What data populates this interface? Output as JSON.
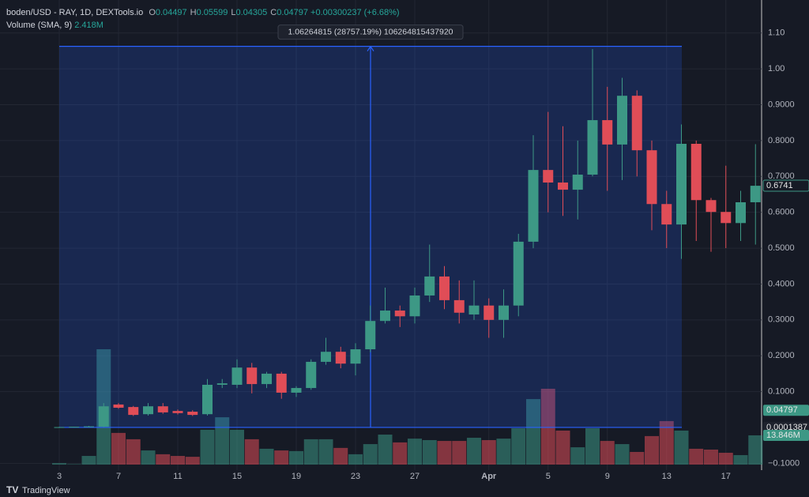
{
  "header": {
    "symbol": "boden/USD",
    "source": "- RAY, 1D, DEXTools.io",
    "ohlc": [
      {
        "key": "O",
        "value": "0.04497"
      },
      {
        "key": "H",
        "value": "0.05599"
      },
      {
        "key": "L",
        "value": "0.04305"
      },
      {
        "key": "C",
        "value": "0.04797"
      }
    ],
    "change": "+0.00300237 (+6.68%)",
    "indicator": "Volume (SMA, 9)",
    "indicator_value": "2.418M"
  },
  "branding": "TradingView",
  "chart_data": {
    "type": "candlestick",
    "categories": [
      "3",
      null,
      null,
      null,
      "7",
      null,
      null,
      null,
      "11",
      null,
      null,
      null,
      "15",
      null,
      null,
      null,
      "19",
      null,
      null,
      null,
      "23",
      null,
      null,
      null,
      "27",
      null,
      null,
      null,
      null,
      "Apr",
      null,
      null,
      null,
      "5",
      null,
      null,
      null,
      "9",
      null,
      null,
      null,
      "13",
      null,
      null,
      null,
      "17",
      null,
      null
    ],
    "open": [
      0.001,
      0.001,
      0.001,
      0.002,
      0.064,
      0.057,
      0.037,
      0.059,
      0.046,
      0.044,
      0.037,
      0.119,
      0.119,
      0.167,
      0.121,
      0.15,
      0.097,
      0.11,
      0.183,
      0.211,
      0.178,
      0.218,
      0.297,
      0.326,
      0.31,
      0.368,
      0.421,
      0.355,
      0.315,
      0.34,
      0.3,
      0.34,
      0.518,
      0.718,
      0.683,
      0.663,
      0.705,
      0.857,
      0.789,
      0.925,
      0.773,
      0.623,
      0.566,
      0.791,
      0.634,
      0.601,
      0.57,
      0.628
    ],
    "high": [
      0.002,
      0.002,
      0.004,
      0.068,
      0.068,
      0.06,
      0.068,
      0.068,
      0.05,
      0.048,
      0.135,
      0.135,
      0.19,
      0.18,
      0.155,
      0.155,
      0.115,
      0.19,
      0.25,
      0.225,
      0.235,
      0.34,
      0.39,
      0.34,
      0.39,
      0.51,
      0.45,
      0.41,
      0.41,
      0.36,
      0.385,
      0.54,
      0.815,
      0.88,
      0.84,
      0.8,
      1.055,
      0.95,
      0.975,
      0.94,
      0.8,
      0.66,
      0.845,
      0.8,
      0.64,
      0.73,
      0.66,
      0.79
    ],
    "low": [
      0.0,
      0.0,
      0.0,
      0.001,
      0.052,
      0.032,
      0.033,
      0.038,
      0.036,
      0.032,
      0.033,
      0.11,
      0.11,
      0.095,
      0.11,
      0.08,
      0.085,
      0.105,
      0.175,
      0.165,
      0.145,
      0.21,
      0.29,
      0.28,
      0.29,
      0.35,
      0.33,
      0.29,
      0.3,
      0.25,
      0.25,
      0.31,
      0.5,
      0.6,
      0.59,
      0.58,
      0.7,
      0.66,
      0.69,
      0.7,
      0.55,
      0.5,
      0.47,
      0.52,
      0.49,
      0.5,
      0.52,
      0.51
    ],
    "close": [
      0.001,
      0.002,
      0.003,
      0.059,
      0.055,
      0.035,
      0.059,
      0.042,
      0.04,
      0.035,
      0.119,
      0.123,
      0.167,
      0.121,
      0.15,
      0.097,
      0.11,
      0.183,
      0.211,
      0.178,
      0.218,
      0.297,
      0.326,
      0.31,
      0.368,
      0.421,
      0.355,
      0.32,
      0.34,
      0.3,
      0.34,
      0.518,
      0.718,
      0.683,
      0.663,
      0.705,
      0.857,
      0.789,
      0.925,
      0.773,
      0.623,
      0.566,
      0.791,
      0.634,
      0.601,
      0.57,
      0.628,
      0.674
    ],
    "volume": [
      0.7,
      0.2,
      4.1,
      54.6,
      15,
      12,
      6.7,
      4.9,
      4.1,
      3.7,
      16.5,
      22.4,
      16.5,
      12,
      7.5,
      6.7,
      6.4,
      12,
      12,
      7.9,
      4.9,
      9.7,
      14.2,
      10.5,
      12.3,
      11.6,
      11.2,
      11.2,
      12.7,
      11.6,
      12.3,
      17.2,
      31,
      35.9,
      16.1,
      8.2,
      17.2,
      11.2,
      9.7,
      6,
      13.5,
      20.6,
      16.1,
      7.5,
      7.1,
      5.6,
      4.5,
      13.846
    ],
    "volume_labels": [
      null,
      null,
      null,
      null,
      null,
      null,
      null,
      null,
      null,
      null,
      null,
      null,
      null,
      null,
      null,
      null,
      null,
      null,
      null,
      null,
      null,
      null,
      null,
      null,
      null,
      null,
      null,
      null,
      null,
      null,
      null,
      null,
      null,
      null,
      null,
      null,
      null,
      null,
      null,
      null,
      null,
      null,
      null,
      null,
      null,
      null,
      null,
      "13.846M"
    ],
    "volume_lim": [
      0,
      218
    ],
    "up_color": "#3d9885",
    "down_color": "#e04d57",
    "ylim": [
      -0.108,
      1.181
    ],
    "yticks": [
      {
        "value": -0.1,
        "label": "−0.1000"
      },
      {
        "value": 0.1,
        "label": "0.1000"
      },
      {
        "value": 0.2,
        "label": "0.2000"
      },
      {
        "value": 0.3,
        "label": "0.3000"
      },
      {
        "value": 0.4,
        "label": "0.4000"
      },
      {
        "value": 0.5,
        "label": "0.5000"
      },
      {
        "value": 0.6,
        "label": "0.6000"
      },
      {
        "value": 0.7,
        "label": "0.7000"
      },
      {
        "value": 0.8,
        "label": "0.8000"
      },
      {
        "value": 0.9,
        "label": "0.9000"
      },
      {
        "value": 1.0,
        "label": "1.00"
      },
      {
        "value": 1.1,
        "label": "1.10"
      }
    ],
    "grid": true,
    "price_badges": [
      {
        "value": 0.6741,
        "label": "0.6741"
      },
      {
        "value": 0.04797,
        "label": "0.04797"
      },
      {
        "value": 0.0001387,
        "label": "0.0001387"
      }
    ],
    "measure": {
      "start": 0.0001387,
      "change": 1.06264815,
      "label": "1.06264815 (28757.19%) 106264815437920"
    }
  }
}
